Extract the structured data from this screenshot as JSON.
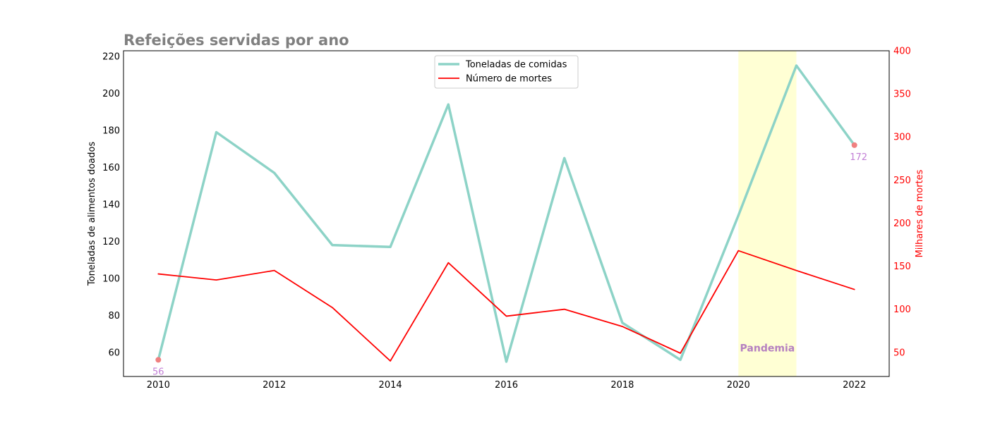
{
  "chart_data": {
    "type": "line",
    "title": "Refeições servidas por ano",
    "x": [
      2010,
      2011,
      2012,
      2013,
      2014,
      2015,
      2016,
      2017,
      2018,
      2019,
      2020,
      2021,
      2022
    ],
    "xticks": [
      "2010",
      "2012",
      "2014",
      "2016",
      "2018",
      "2020",
      "2022"
    ],
    "xlim": [
      2009.4,
      2022.6
    ],
    "y_left": {
      "label": "Toneladas de alimentos doados",
      "ticks": [
        "60",
        "80",
        "100",
        "120",
        "140",
        "160",
        "180",
        "200",
        "220"
      ],
      "lim": [
        47,
        223
      ]
    },
    "y_right": {
      "label": "Milhares de mortes",
      "ticks": [
        "50",
        "100",
        "150",
        "200",
        "250",
        "300",
        "350",
        "400"
      ],
      "lim": [
        22,
        400
      ],
      "color": "#ff0000"
    },
    "series": [
      {
        "name": "Toneladas de comidas",
        "axis": "left",
        "color": "#8dd3c7",
        "values": [
          56,
          179,
          157,
          118,
          117,
          194,
          55,
          165,
          76,
          56,
          134,
          215,
          172
        ]
      },
      {
        "name": "Número de mortes",
        "axis": "right",
        "color": "#ff0000",
        "values": [
          141,
          134,
          145,
          102,
          40,
          154,
          92,
          100,
          80,
          49,
          168,
          145,
          123
        ]
      }
    ],
    "highlight": {
      "label": "Pandemia",
      "from": 2020,
      "to": 2021,
      "color": "#ffffd4",
      "label_color": "#b580c0"
    },
    "annotations": [
      {
        "x": 2010,
        "value": 56,
        "text": "56"
      },
      {
        "x": 2022,
        "value": 172,
        "text": "172"
      }
    ],
    "annotation_color": "#c27fd6",
    "marker_color": "#f08080",
    "legend": "top-center",
    "grid": false
  }
}
